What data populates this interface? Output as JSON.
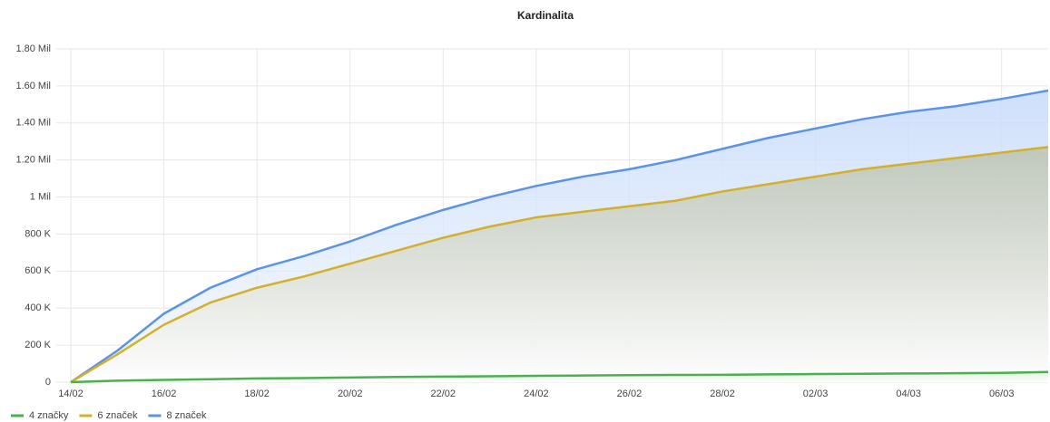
{
  "chart_data": {
    "type": "area",
    "title": "Kardinalita",
    "categories": [
      "14/02",
      null,
      "16/02",
      null,
      "18/02",
      null,
      "20/02",
      null,
      "22/02",
      null,
      "24/02",
      null,
      "26/02",
      null,
      "28/02",
      null,
      "02/03",
      null,
      "04/03",
      null,
      "06/03",
      null
    ],
    "series": [
      {
        "name": "4 značky",
        "color": "#4caf50",
        "values": [
          0,
          8000,
          12000,
          16000,
          20000,
          22000,
          25000,
          28000,
          30000,
          32000,
          34000,
          36000,
          38000,
          39000,
          40000,
          42000,
          44000,
          45000,
          47000,
          48000,
          50000,
          55000
        ]
      },
      {
        "name": "6 značek",
        "color": "#d4b02a",
        "values": [
          0,
          150000,
          310000,
          430000,
          510000,
          570000,
          640000,
          710000,
          780000,
          840000,
          890000,
          920000,
          950000,
          980000,
          1030000,
          1070000,
          1110000,
          1150000,
          1180000,
          1210000,
          1240000,
          1270000
        ]
      },
      {
        "name": "8 značek",
        "color": "#5b93e6",
        "values": [
          0,
          170000,
          370000,
          510000,
          610000,
          680000,
          760000,
          850000,
          930000,
          1000000,
          1060000,
          1110000,
          1150000,
          1200000,
          1260000,
          1320000,
          1370000,
          1420000,
          1460000,
          1490000,
          1530000,
          1575000
        ]
      }
    ],
    "ylim": [
      0,
      1800000
    ],
    "yticks": [
      0,
      {
        "value": 200000,
        "label": "200 K"
      },
      {
        "value": 400000,
        "label": "400 K"
      },
      {
        "value": 600000,
        "label": "600 K"
      },
      {
        "value": 800000,
        "label": "800 K"
      },
      {
        "value": 1000000,
        "label": "1 Mil"
      },
      {
        "value": 1200000,
        "label": "1.20 Mil"
      },
      {
        "value": 1400000,
        "label": "1.40 Mil"
      },
      {
        "value": 1600000,
        "label": "1.60 Mil"
      },
      {
        "value": 1800000,
        "label": "1.80 Mil"
      }
    ],
    "grid": true,
    "legend": "bottom-left"
  }
}
